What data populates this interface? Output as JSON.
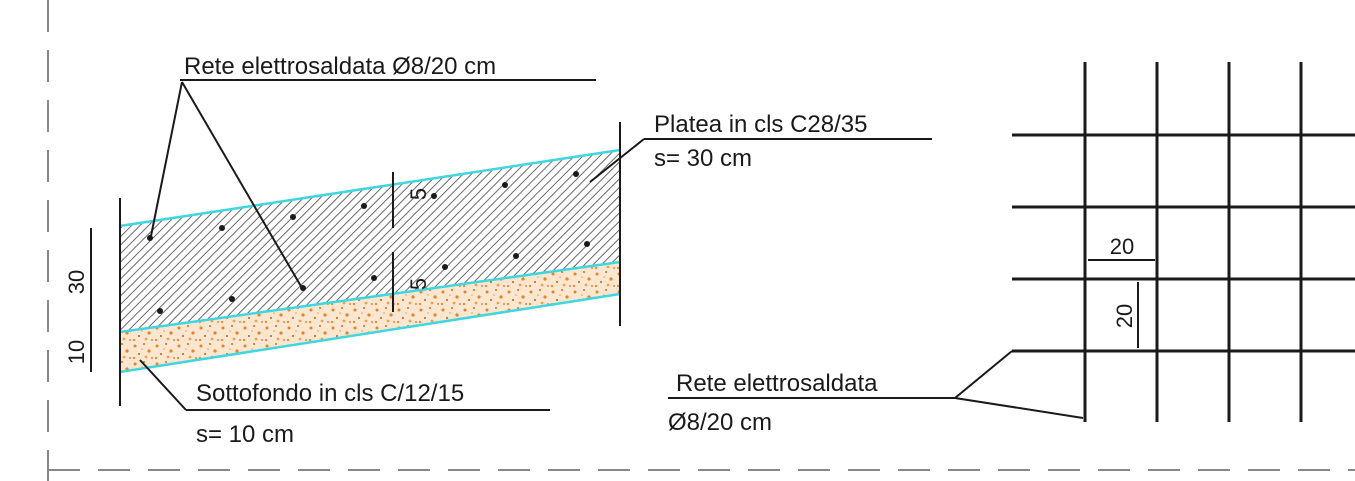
{
  "labels": {
    "rete_top": "Rete elettrosaldata Ø8/20 cm",
    "platea_line1": "Platea in cls C28/35",
    "platea_line2": "s= 30 cm",
    "sottofondo_line1": "Sottofondo in cls C/12/15",
    "sottofondo_line2": "s= 10 cm",
    "rete_right_line1": "Rete elettrosaldata",
    "rete_right_line2": "Ø8/20 cm"
  },
  "dimensions": {
    "platea_thickness": "30",
    "sottofondo_thickness": "10",
    "cover_top": "5",
    "cover_bottom": "5",
    "mesh_spacing_horizontal": "20",
    "mesh_spacing_vertical": "20"
  },
  "colors": {
    "line": "#1a1a1a",
    "slab_edge": "#3fd6e0",
    "hatch": "#555555",
    "fill_grains": "#e8822a"
  }
}
